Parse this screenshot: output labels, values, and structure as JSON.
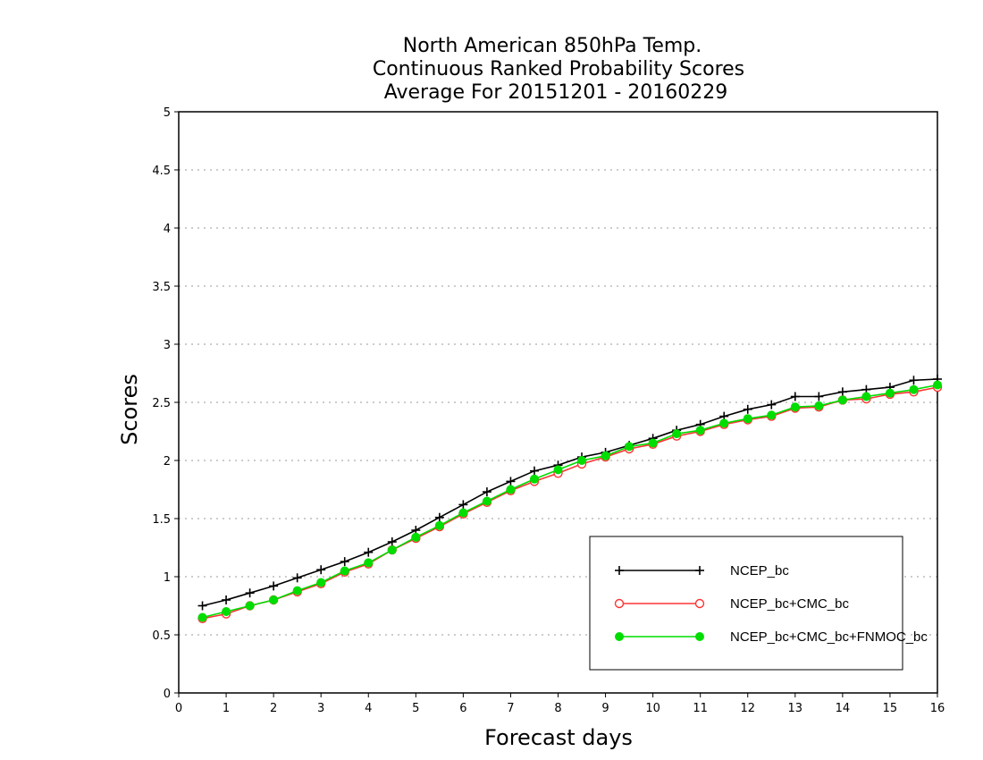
{
  "chart_data": {
    "type": "line",
    "title_lines": [
      "North American 850hPa Temp.",
      "Continuous Ranked Probability Scores",
      "Average For 20151201 - 20160229"
    ],
    "xlabel": "Forecast days",
    "ylabel": "Scores",
    "xlim": [
      0,
      16
    ],
    "ylim": [
      0,
      5
    ],
    "xticks": [
      "0",
      "1",
      "2",
      "3",
      "4",
      "5",
      "6",
      "7",
      "8",
      "9",
      "10",
      "11",
      "12",
      "13",
      "14",
      "15",
      "16"
    ],
    "yticks": [
      "0",
      "0.5",
      "1",
      "1.5",
      "2",
      "2.5",
      "3",
      "3.5",
      "4",
      "4.5",
      "5"
    ],
    "grid": "horizontal dotted",
    "legend_position": "lower-right",
    "x": [
      0.5,
      1,
      1.5,
      2,
      2.5,
      3,
      3.5,
      4,
      4.5,
      5,
      5.5,
      6,
      6.5,
      7,
      7.5,
      8,
      8.5,
      9,
      9.5,
      10,
      10.5,
      11,
      11.5,
      12,
      12.5,
      13,
      13.5,
      14,
      14.5,
      15,
      15.5,
      16
    ],
    "series": [
      {
        "name": "NCEP_bc",
        "color": "#000000",
        "marker": "plus",
        "values": [
          0.75,
          0.8,
          0.86,
          0.92,
          0.99,
          1.06,
          1.13,
          1.21,
          1.3,
          1.4,
          1.51,
          1.62,
          1.73,
          1.82,
          1.91,
          1.96,
          2.03,
          2.07,
          2.13,
          2.19,
          2.26,
          2.31,
          2.38,
          2.44,
          2.48,
          2.55,
          2.55,
          2.59,
          2.61,
          2.63,
          2.69,
          2.7
        ]
      },
      {
        "name": "NCEP_bc+CMC_bc",
        "color": "#ff3333",
        "marker": "open-circle",
        "values": [
          0.64,
          0.68,
          0.75,
          0.8,
          0.87,
          0.94,
          1.04,
          1.11,
          1.23,
          1.33,
          1.43,
          1.54,
          1.64,
          1.74,
          1.82,
          1.89,
          1.97,
          2.03,
          2.1,
          2.14,
          2.21,
          2.25,
          2.31,
          2.35,
          2.38,
          2.45,
          2.46,
          2.52,
          2.53,
          2.57,
          2.59,
          2.63
        ]
      },
      {
        "name": "NCEP_bc+CMC_bc+FNMOC_bc",
        "color": "#00dd00",
        "marker": "filled-circle",
        "values": [
          0.65,
          0.7,
          0.75,
          0.8,
          0.88,
          0.95,
          1.05,
          1.12,
          1.23,
          1.34,
          1.44,
          1.55,
          1.65,
          1.75,
          1.84,
          1.92,
          2.0,
          2.04,
          2.12,
          2.15,
          2.23,
          2.26,
          2.32,
          2.36,
          2.39,
          2.46,
          2.47,
          2.52,
          2.55,
          2.58,
          2.61,
          2.65
        ]
      }
    ]
  }
}
